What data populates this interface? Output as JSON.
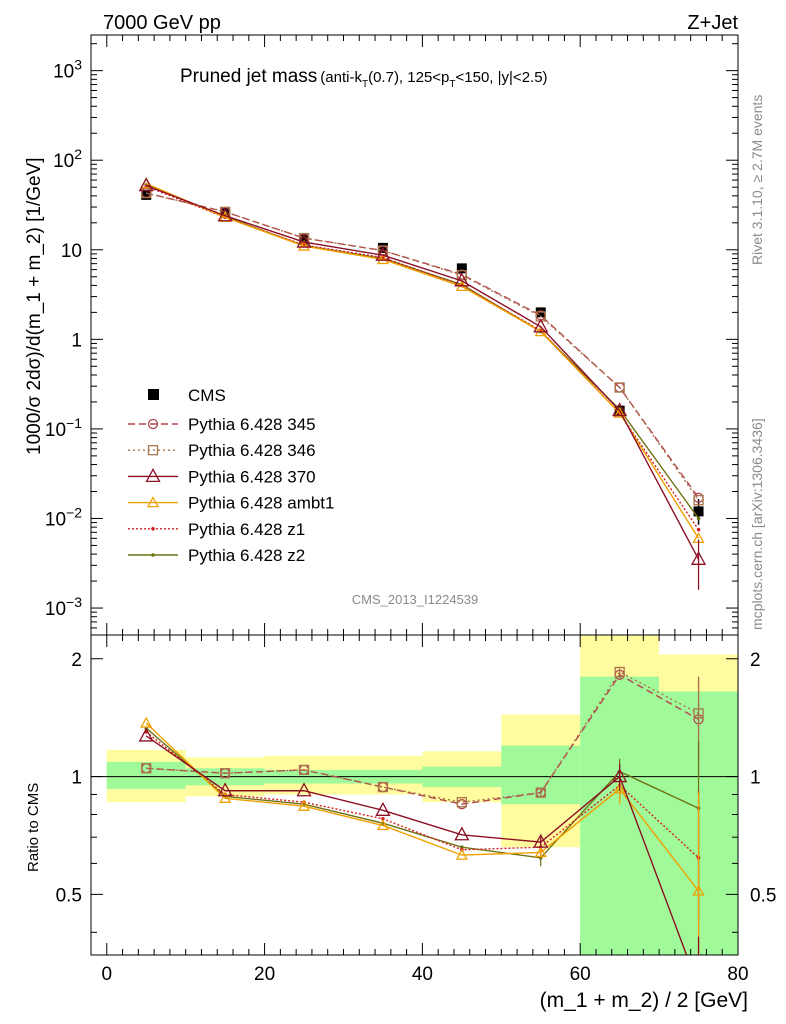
{
  "header": {
    "left": "7000 GeV pp",
    "right": "Z+Jet"
  },
  "side": {
    "rivet": "Rivet 3.1.10, ≥ 2.7M events",
    "mcplots": "mcplots.cern.ch [arXiv:1306.3436]"
  },
  "title": {
    "main": "Pruned jet mass",
    "cond_a": "(anti-k",
    "cond_sub_t": "T",
    "cond_b": "(0.7), 125<p",
    "cond_c": "<150, |y|<2.5)"
  },
  "analysis_id": "CMS_2013_I1224539",
  "main_ylabel": "1000/σ 2dσ)/d(m_1 + m_2) [1/GeV]",
  "ratio_ylabel": "Ratio to CMS",
  "xlabel": "(m_1 + m_2) / 2 [GeV]",
  "main_yticks": [
    {
      "base": "10",
      "exp": "3"
    },
    {
      "base": "10",
      "exp": "2"
    },
    {
      "base": "10",
      "exp": ""
    },
    {
      "base": "1",
      "exp": ""
    },
    {
      "base": "10",
      "exp": "−1"
    },
    {
      "base": "10",
      "exp": "−2"
    },
    {
      "base": "10",
      "exp": "−3"
    }
  ],
  "ratio_yticks": [
    "2",
    "1",
    "0.5"
  ],
  "xticks": [
    "0",
    "20",
    "40",
    "60",
    "80"
  ],
  "colors": {
    "cms": "#000000",
    "p345": "#b5444e",
    "p346": "#a8744a",
    "p370": "#8b1025",
    "ambt1": "#f0a000",
    "z1": "#d42020",
    "z2": "#6e7214",
    "band_green": "#a0fa9a",
    "band_yellow": "#fefc9e"
  },
  "chart_data": {
    "type": "line",
    "x_edges": [
      0,
      10,
      20,
      30,
      40,
      50,
      60,
      70,
      80
    ],
    "x": [
      5,
      15,
      25,
      35,
      45,
      55,
      65,
      75
    ],
    "xlim": [
      -2,
      80
    ],
    "main_ylim": [
      0.0005,
      2500
    ],
    "main_yscale": "log",
    "ratio_ylim": [
      0.35,
      2.3
    ],
    "ratio_yscale": "log",
    "data": {
      "name": "CMS",
      "values": [
        41,
        26,
        13,
        10.5,
        6.2,
        2.0,
        0.16,
        0.012
      ],
      "band_green": [
        [
          0.93,
          1.09
        ],
        [
          0.95,
          1.05
        ],
        [
          0.96,
          1.04
        ],
        [
          0.96,
          1.04
        ],
        [
          0.94,
          1.06
        ],
        [
          0.85,
          1.2
        ],
        [
          0.35,
          1.8
        ],
        [
          0.35,
          1.65
        ]
      ],
      "band_yellow": [
        [
          0.86,
          1.17
        ],
        [
          0.89,
          1.12
        ],
        [
          0.9,
          1.13
        ],
        [
          0.9,
          1.13
        ],
        [
          0.86,
          1.16
        ],
        [
          0.66,
          1.44
        ],
        [
          0.35,
          2.4
        ],
        [
          0.35,
          2.05
        ]
      ]
    },
    "series": [
      {
        "name": "Pythia 6.428 345",
        "key": "p345",
        "marker": "circle",
        "dash": "7,4",
        "values": [
          43,
          26.5,
          13.5,
          9.8,
          5.3,
          1.85,
          0.29,
          0.017
        ],
        "ratio": [
          1.05,
          1.02,
          1.04,
          0.94,
          0.85,
          0.91,
          1.82,
          1.4
        ],
        "ratio_err": [
          0,
          0,
          0,
          0,
          0,
          0.02,
          0.04,
          0.4
        ]
      },
      {
        "name": "Pythia 6.428 346",
        "key": "p346",
        "marker": "square",
        "dash": "2,3",
        "values": [
          43,
          26.5,
          13.5,
          9.8,
          5.2,
          1.8,
          0.29,
          0.016
        ],
        "ratio": [
          1.05,
          1.02,
          1.04,
          0.94,
          0.86,
          0.91,
          1.85,
          1.45
        ],
        "ratio_err": [
          0,
          0,
          0,
          0,
          0,
          0.02,
          0.04,
          0.35
        ]
      },
      {
        "name": "Pythia 6.428 370",
        "key": "p370",
        "marker": "triangle",
        "dash": "",
        "values": [
          52,
          24,
          12.2,
          8.7,
          4.5,
          1.38,
          0.16,
          0.0035
        ],
        "ratio": [
          1.27,
          0.92,
          0.92,
          0.82,
          0.71,
          0.68,
          1.0,
          0.29
        ],
        "ratio_err": [
          0,
          0,
          0,
          0,
          0,
          0.02,
          0.08,
          0.1
        ]
      },
      {
        "name": "Pythia 6.428 ambt1",
        "key": "ambt1",
        "marker": "triangle-small",
        "dash": "",
        "values": [
          55,
          23,
          11,
          7.8,
          3.9,
          1.22,
          0.15,
          0.006
        ],
        "ratio": [
          1.37,
          0.88,
          0.84,
          0.75,
          0.63,
          0.64,
          0.93,
          0.51
        ],
        "ratio_err": [
          0,
          0,
          0,
          0,
          0,
          0.02,
          0.08,
          0.4
        ]
      },
      {
        "name": "Pythia 6.428 z1",
        "key": "z1",
        "marker": "dot",
        "dash": "2,2",
        "values": [
          51,
          23,
          11.3,
          8.2,
          4.0,
          1.25,
          0.15,
          0.0075
        ],
        "ratio": [
          1.3,
          0.9,
          0.86,
          0.78,
          0.65,
          0.66,
          0.95,
          0.62
        ],
        "ratio_err": [
          0,
          0,
          0,
          0,
          0,
          0.03,
          0.08,
          0.3
        ]
      },
      {
        "name": "Pythia 6.428 z2",
        "key": "z2",
        "marker": "dot",
        "dash": "",
        "values": [
          53,
          23.5,
          11.1,
          8.0,
          4.1,
          1.22,
          0.165,
          0.01
        ],
        "ratio": [
          1.33,
          0.89,
          0.85,
          0.76,
          0.66,
          0.62,
          1.03,
          0.83
        ],
        "ratio_err": [
          0,
          0,
          0,
          0,
          0,
          0.03,
          0.08,
          0.4
        ]
      }
    ]
  }
}
